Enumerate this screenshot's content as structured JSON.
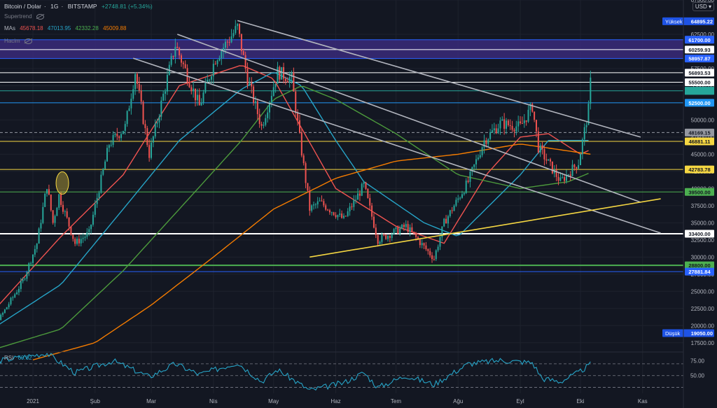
{
  "header": {
    "symbol": "Bitcoin / Dolar",
    "interval": "1G",
    "exchange": "BITSTAMP",
    "change": "+2748.81 (+5.34%)",
    "supertrend_label": "Supertrend",
    "mas_label": "MAs",
    "ma_values": [
      "45678.18",
      "47013.95",
      "42332.28",
      "45009.88"
    ],
    "volume_label": "Hacim",
    "rsi_label": "RSI",
    "rsi_value": "69.02",
    "currency": "USD"
  },
  "colors": {
    "background": "#131722",
    "up": "#26a69a",
    "down": "#ef5350",
    "ma_red": "#ef5350",
    "ma_blue": "#26a4c7",
    "ma_green": "#4c9a3c",
    "ma_orange": "#f57c00",
    "rsi_line": "#26a4c7",
    "trendline": "#b2b5be",
    "support": "#f5d742",
    "zone": "#3a2a7a"
  },
  "chart_data": {
    "type": "candlestick",
    "title": "Bitcoin / Dolar",
    "ylim": [
      16250,
      67500
    ],
    "y_ticks": [
      "17500.00",
      "20000.00",
      "22500.00",
      "25000.00",
      "27500.00",
      "30000.00",
      "32500.00",
      "35000.00",
      "37500.00",
      "40000.00",
      "42500.00",
      "45000.00",
      "47500.00",
      "50000.00",
      "52500.00",
      "55000.00",
      "57500.00",
      "60000.00",
      "62500.00",
      "67500.00"
    ],
    "x_ticks": [
      "2021",
      "Şub",
      "Mar",
      "Nis",
      "May",
      "Haz",
      "Tem",
      "Ağu",
      "Eyl",
      "Eki",
      "Kas"
    ],
    "x_tick_dates": [
      "2021-01-01",
      "2021-02-01",
      "2021-03-01",
      "2021-04-01",
      "2021-05-01",
      "2021-06-01",
      "2021-07-01",
      "2021-08-01",
      "2021-09-01",
      "2021-10-01",
      "2021-11-01"
    ],
    "price_path_close": [
      [
        "2020-12-01",
        19000
      ],
      [
        "2020-12-16",
        21300
      ],
      [
        "2020-12-27",
        26500
      ],
      [
        "2021-01-03",
        32000
      ],
      [
        "2021-01-08",
        40500
      ],
      [
        "2021-01-11",
        35000
      ],
      [
        "2021-01-14",
        39000
      ],
      [
        "2021-01-22",
        32000
      ],
      [
        "2021-01-29",
        33500
      ],
      [
        "2021-02-08",
        46500
      ],
      [
        "2021-02-16",
        49000
      ],
      [
        "2021-02-21",
        57000
      ],
      [
        "2021-02-28",
        45000
      ],
      [
        "2021-03-13",
        61000
      ],
      [
        "2021-03-25",
        52000
      ],
      [
        "2021-04-02",
        59000
      ],
      [
        "2021-04-13",
        63500
      ],
      [
        "2021-04-18",
        56000
      ],
      [
        "2021-04-25",
        49000
      ],
      [
        "2021-05-03",
        57000
      ],
      [
        "2021-05-10",
        56000
      ],
      [
        "2021-05-13",
        49500
      ],
      [
        "2021-05-19",
        37000
      ],
      [
        "2021-05-24",
        38000
      ],
      [
        "2021-06-05",
        35500
      ],
      [
        "2021-06-15",
        40500
      ],
      [
        "2021-06-22",
        32500
      ],
      [
        "2021-07-06",
        34500
      ],
      [
        "2021-07-20",
        29800
      ],
      [
        "2021-07-25",
        35000
      ],
      [
        "2021-08-06",
        41000
      ],
      [
        "2021-08-14",
        47000
      ],
      [
        "2021-08-22",
        49500
      ],
      [
        "2021-09-01",
        49000
      ],
      [
        "2021-09-07",
        52000
      ],
      [
        "2021-09-10",
        46000
      ],
      [
        "2021-09-21",
        41000
      ],
      [
        "2021-09-30",
        43800
      ],
      [
        "2021-10-05",
        51500
      ],
      [
        "2021-10-06",
        55500
      ]
    ],
    "highlighted_candle_date": "2021-01-08",
    "moving_averages": [
      {
        "name": "MA 1",
        "value": 45678.18,
        "color": "#ef5350",
        "path": [
          [
            "2020-12-01",
            18500
          ],
          [
            "2021-01-15",
            33000
          ],
          [
            "2021-02-15",
            42000
          ],
          [
            "2021-03-15",
            55000
          ],
          [
            "2021-04-15",
            58000
          ],
          [
            "2021-05-01",
            56000
          ],
          [
            "2021-06-01",
            40000
          ],
          [
            "2021-07-01",
            34500
          ],
          [
            "2021-07-25",
            32000
          ],
          [
            "2021-08-15",
            42000
          ],
          [
            "2021-09-01",
            47500
          ],
          [
            "2021-09-15",
            48000
          ],
          [
            "2021-10-01",
            45000
          ],
          [
            "2021-10-06",
            45678
          ]
        ]
      },
      {
        "name": "MA 2",
        "value": 47013.95,
        "color": "#26a4c7",
        "path": [
          [
            "2020-12-01",
            17500
          ],
          [
            "2021-01-15",
            26000
          ],
          [
            "2021-02-15",
            37000
          ],
          [
            "2021-03-15",
            47000
          ],
          [
            "2021-04-15",
            54500
          ],
          [
            "2021-05-01",
            57000
          ],
          [
            "2021-05-15",
            55000
          ],
          [
            "2021-06-01",
            47000
          ],
          [
            "2021-06-15",
            41000
          ],
          [
            "2021-07-15",
            35000
          ],
          [
            "2021-08-01",
            33000
          ],
          [
            "2021-09-01",
            42000
          ],
          [
            "2021-09-15",
            47000
          ],
          [
            "2021-10-06",
            47014
          ]
        ]
      },
      {
        "name": "MA 3",
        "value": 42332.28,
        "color": "#4c9a3c",
        "path": [
          [
            "2020-12-01",
            15500
          ],
          [
            "2021-01-15",
            19500
          ],
          [
            "2021-02-15",
            28000
          ],
          [
            "2021-03-15",
            37000
          ],
          [
            "2021-04-15",
            47000
          ],
          [
            "2021-05-01",
            53000
          ],
          [
            "2021-05-15",
            55000
          ],
          [
            "2021-06-01",
            53000
          ],
          [
            "2021-07-01",
            48000
          ],
          [
            "2021-08-01",
            42000
          ],
          [
            "2021-09-01",
            40000
          ],
          [
            "2021-09-25",
            41000
          ],
          [
            "2021-10-06",
            42332
          ]
        ]
      },
      {
        "name": "MA 4",
        "value": 45009.88,
        "color": "#f57c00",
        "path": [
          [
            "2021-01-01",
            15000
          ],
          [
            "2021-02-01",
            17500
          ],
          [
            "2021-03-01",
            23000
          ],
          [
            "2021-04-01",
            30000
          ],
          [
            "2021-05-01",
            37000
          ],
          [
            "2021-06-01",
            41500
          ],
          [
            "2021-07-01",
            44000
          ],
          [
            "2021-08-01",
            45000
          ],
          [
            "2021-09-01",
            46500
          ],
          [
            "2021-10-06",
            45010
          ]
        ]
      }
    ],
    "horizontal_levels": [
      {
        "value": 61700.0,
        "label": "61700.00",
        "color": "#2962ff"
      },
      {
        "value": 60259.93,
        "label": "60259.93",
        "color": "#ffffff"
      },
      {
        "value": 58957.87,
        "label": "58957.87",
        "color": "#2962ff"
      },
      {
        "value": 56893.53,
        "label": "56893.53",
        "color": "#ffffff"
      },
      {
        "value": 55500.0,
        "label": "55500.00",
        "color": "#ffffff"
      },
      {
        "value": 54250.0,
        "label": "54250.00",
        "color": "#26a69a"
      },
      {
        "value": 52500.0,
        "label": "52500.00",
        "color": "#2196f3"
      },
      {
        "value": 48169.15,
        "label": "48169.15",
        "color": "#9598a1"
      },
      {
        "value": 46881.11,
        "label": "46881.11",
        "color": "#f5d742"
      },
      {
        "value": 42783.78,
        "label": "42783.78",
        "color": "#f5d742"
      },
      {
        "value": 39500.0,
        "label": "39500.00",
        "color": "#4caf50"
      },
      {
        "value": 33400.0,
        "label": "33400.00",
        "color": "#ffffff"
      },
      {
        "value": 28800.0,
        "label": "28800.00",
        "color": "#4caf50"
      },
      {
        "value": 27881.84,
        "label": "27881.84",
        "color": "#2962ff"
      }
    ],
    "high": {
      "label": "Yüksek",
      "value": "64895.22"
    },
    "low": {
      "label": "Düşük",
      "value": "19050.00"
    },
    "zone": {
      "from": 58957.87,
      "to": 61700.0
    },
    "trendlines": [
      {
        "from": [
          "2021-04-13",
          64500
        ],
        "to": [
          "2021-10-31",
          47500
        ],
        "color": "#b2b5be"
      },
      {
        "from": [
          "2021-03-14",
          62500
        ],
        "to": [
          "2021-10-31",
          38000
        ],
        "color": "#b2b5be"
      },
      {
        "from": [
          "2021-02-20",
          59000
        ],
        "to": [
          "2021-11-10",
          33500
        ],
        "color": "#b2b5be"
      },
      {
        "from": [
          "2021-05-19",
          30000
        ],
        "to": [
          "2021-11-10",
          38500
        ],
        "color": "#f5d742"
      }
    ],
    "rsi": {
      "name": "RSI",
      "value": 69.02,
      "levels": [
        70,
        50,
        30
      ],
      "ticks": [
        "75.00",
        "50.00"
      ],
      "ylim": [
        20,
        90
      ],
      "path": [
        [
          "2020-12-01",
          68
        ],
        [
          "2021-01-08",
          88
        ],
        [
          "2021-01-22",
          55
        ],
        [
          "2021-02-10",
          75
        ],
        [
          "2021-02-28",
          48
        ],
        [
          "2021-03-13",
          70
        ],
        [
          "2021-03-25",
          52
        ],
        [
          "2021-04-13",
          72
        ],
        [
          "2021-04-25",
          40
        ],
        [
          "2021-05-03",
          60
        ],
        [
          "2021-05-19",
          25
        ],
        [
          "2021-06-05",
          38
        ],
        [
          "2021-06-15",
          55
        ],
        [
          "2021-06-22",
          30
        ],
        [
          "2021-07-06",
          50
        ],
        [
          "2021-07-20",
          35
        ],
        [
          "2021-08-06",
          70
        ],
        [
          "2021-08-22",
          76
        ],
        [
          "2021-09-07",
          72
        ],
        [
          "2021-09-12",
          45
        ],
        [
          "2021-09-21",
          40
        ],
        [
          "2021-09-30",
          55
        ],
        [
          "2021-10-06",
          69.02
        ]
      ]
    }
  }
}
